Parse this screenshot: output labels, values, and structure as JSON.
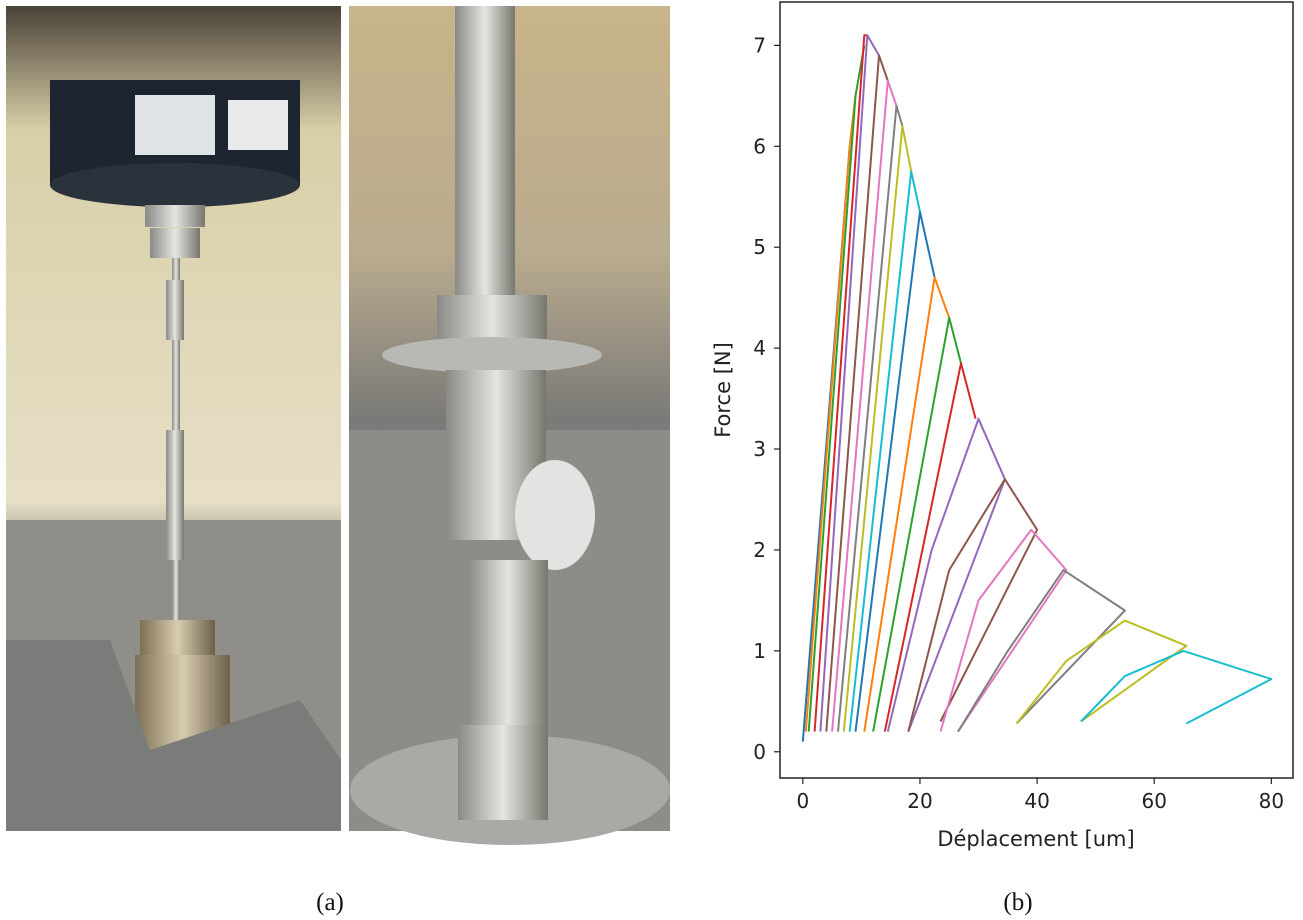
{
  "captions": [
    "(a)",
    "(b)"
  ],
  "chart_data": {
    "type": "line",
    "xlabel": "Déplacement [um]",
    "ylabel": "Force [N]",
    "xlim": [
      -3.9,
      83.7
    ],
    "ylim": [
      -0.26,
      7.43
    ],
    "xticks": [
      0,
      20,
      40,
      60,
      80
    ],
    "yticks": [
      0,
      1,
      2,
      3,
      4,
      5,
      6,
      7
    ],
    "series": [
      {
        "color": "#1f77b4",
        "x": [
          0,
          6,
          8
        ],
        "values": [
          0.1,
          4.5,
          6.0
        ]
      },
      {
        "color": "#ff7f0e",
        "x": [
          0.5,
          8,
          9
        ],
        "values": [
          0.2,
          6.0,
          6.5
        ]
      },
      {
        "color": "#2ca02c",
        "x": [
          1,
          9,
          10.5
        ],
        "values": [
          0.2,
          6.5,
          7.0
        ]
      },
      {
        "color": "#d62728",
        "x": [
          2,
          10.5,
          11
        ],
        "values": [
          0.2,
          7.1,
          7.1
        ]
      },
      {
        "color": "#9467bd",
        "x": [
          3,
          11,
          13
        ],
        "values": [
          0.2,
          7.1,
          6.9
        ]
      },
      {
        "color": "#8c564b",
        "x": [
          4,
          13,
          14.5
        ],
        "values": [
          0.2,
          6.9,
          6.65
        ]
      },
      {
        "color": "#e377c2",
        "x": [
          5,
          14.5,
          16
        ],
        "values": [
          0.2,
          6.65,
          6.4
        ]
      },
      {
        "color": "#7f7f7f",
        "x": [
          6,
          16,
          17
        ],
        "values": [
          0.2,
          6.4,
          6.2
        ]
      },
      {
        "color": "#bcbd22",
        "x": [
          7,
          17,
          18.5
        ],
        "values": [
          0.2,
          6.2,
          5.75
        ]
      },
      {
        "color": "#17becf",
        "x": [
          8,
          18.5,
          20
        ],
        "values": [
          0.2,
          5.75,
          5.35
        ]
      },
      {
        "color": "#1f77b4",
        "x": [
          9,
          20,
          22.5
        ],
        "values": [
          0.2,
          5.35,
          4.7
        ]
      },
      {
        "color": "#ff7f0e",
        "x": [
          10.5,
          22.5,
          25
        ],
        "values": [
          0.2,
          4.7,
          4.3
        ]
      },
      {
        "color": "#2ca02c",
        "x": [
          12,
          25,
          27
        ],
        "values": [
          0.2,
          4.3,
          3.85
        ]
      },
      {
        "color": "#d62728",
        "x": [
          14,
          27,
          29.5
        ],
        "values": [
          0.2,
          3.85,
          3.3
        ]
      },
      {
        "color": "#9467bd",
        "x": [
          14.5,
          22,
          30,
          34.5,
          18
        ],
        "values": [
          0.2,
          2.0,
          3.3,
          2.7,
          0.2
        ]
      },
      {
        "color": "#8c564b",
        "x": [
          18,
          25,
          34.5,
          40,
          23.5
        ],
        "values": [
          0.2,
          1.8,
          2.7,
          2.2,
          0.3
        ]
      },
      {
        "color": "#e377c2",
        "x": [
          23.5,
          30,
          39,
          45,
          26.5
        ],
        "values": [
          0.2,
          1.5,
          2.2,
          1.8,
          0.2
        ]
      },
      {
        "color": "#7f7f7f",
        "x": [
          26.5,
          35,
          44.5,
          55,
          36.5
        ],
        "values": [
          0.2,
          1.0,
          1.8,
          1.4,
          0.28
        ]
      },
      {
        "color": "#bcbd22",
        "x": [
          36.5,
          45,
          55,
          65.5,
          47.5
        ],
        "values": [
          0.28,
          0.9,
          1.3,
          1.05,
          0.3
        ]
      },
      {
        "color": "#17becf",
        "x": [
          47.5,
          55,
          65,
          80,
          65.5
        ],
        "values": [
          0.3,
          0.75,
          1.0,
          0.72,
          0.28
        ]
      }
    ]
  }
}
